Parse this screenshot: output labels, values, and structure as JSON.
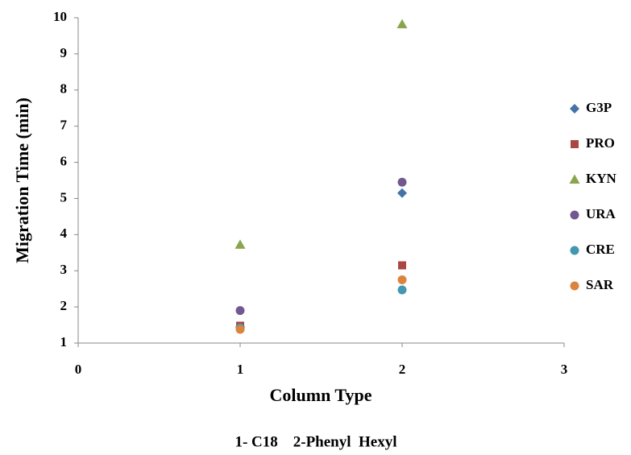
{
  "chart_data": {
    "type": "scatter",
    "x_label": "Column Type",
    "y_label": "Migration Time (min)",
    "note": "1- C18    2-Phenyl  Hexyl",
    "x": [
      1,
      2
    ],
    "series": [
      {
        "name": "G3P",
        "color": "#4572a7",
        "marker": "diamond",
        "values": [
          1.45,
          5.15
        ]
      },
      {
        "name": "PRO",
        "color": "#aa4643",
        "marker": "square",
        "values": [
          1.48,
          3.15
        ]
      },
      {
        "name": "KYN",
        "color": "#89a54e",
        "marker": "triangle",
        "values": [
          3.72,
          9.82
        ]
      },
      {
        "name": "URA",
        "color": "#71588f",
        "marker": "circle",
        "values": [
          1.9,
          5.45
        ]
      },
      {
        "name": "CRE",
        "color": "#4198af",
        "marker": "circle",
        "values": [
          1.42,
          2.47
        ]
      },
      {
        "name": "SAR",
        "color": "#db843d",
        "marker": "circle",
        "values": [
          1.38,
          2.75
        ]
      }
    ],
    "xlim": [
      0,
      3
    ],
    "xticks": [
      0,
      1,
      2,
      3
    ],
    "ylim": [
      1,
      10
    ],
    "yticks": [
      1,
      2,
      3,
      4,
      5,
      6,
      7,
      8,
      9,
      10
    ],
    "grid": false,
    "legend": "right"
  }
}
